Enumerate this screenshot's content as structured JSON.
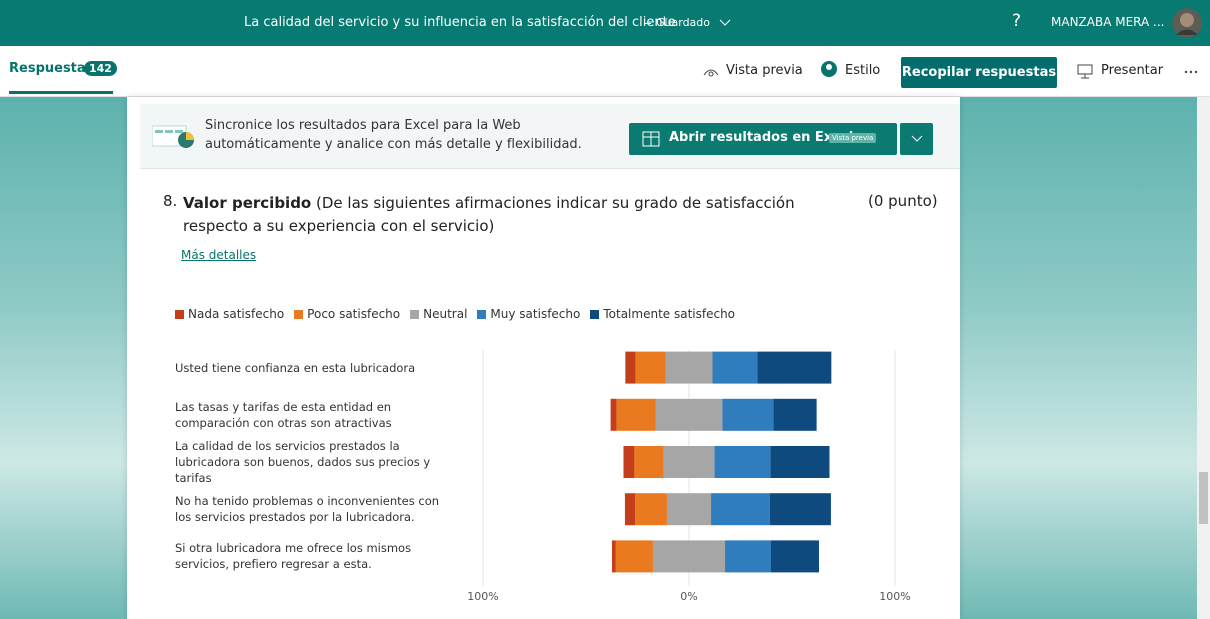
{
  "header": {
    "title": "La calidad del servicio y su influencia en la satisfacción del cliente",
    "status": "Guardado",
    "help": "?",
    "user": "MANZABA MERA ..."
  },
  "toolbar": {
    "tab": "Respuestas",
    "count": 142,
    "preview": "Vista previa",
    "style": "Estilo",
    "collect": "Recopilar respuestas",
    "present": "Presentar"
  },
  "banner": {
    "text": "Sincronice los resultados para Excel para la Web automáticamente y analice con más detalle y flexibilidad.",
    "button": "Abrir resultados en Excel",
    "badge": "Vista previa"
  },
  "question": {
    "number": "8.",
    "title": "Valor percibido",
    "description": "(De  las siguientes afirmaciones indicar su grado de satisfacción respecto a su experiencia con el servicio)",
    "points": "(0 punto)",
    "link": "Más detalles"
  },
  "chart_data": {
    "type": "diverging_bar",
    "categories": [
      "Usted tiene confianza en esta lubricadora",
      "Las tasas y tarifas de esta entidad en comparación con otras son atractivas",
      "La calidad de los servicios prestados la lubricadora son buenos, dados sus precios y tarifas",
      "No ha tenido problemas o inconvenientes con los servicios prestados por la lubricadora.",
      "Si otra lubricadora me ofrece los mismos servicios, prefiero regresar a esta."
    ],
    "series": [
      {
        "name": "Nada satisfecho",
        "color": "#c43e1c",
        "values": [
          4.9,
          2.9,
          5.3,
          4.9,
          1.9
        ]
      },
      {
        "name": "Poco satisfecho",
        "color": "#e97a1f",
        "values": [
          14.6,
          18.9,
          14.1,
          15.5,
          18.0
        ]
      },
      {
        "name": "Neutral",
        "color": "#a6a6a6",
        "values": [
          22.8,
          32.5,
          24.8,
          21.4,
          35.0
        ]
      },
      {
        "name": "Muy satisfecho",
        "color": "#2f7dbd",
        "values": [
          21.8,
          24.8,
          27.2,
          28.6,
          22.3
        ]
      },
      {
        "name": "Totalmente satisfecho",
        "color": "#0f4a7e",
        "values": [
          35.9,
          20.9,
          28.6,
          29.6,
          23.3
        ]
      }
    ],
    "xlim": [
      -100,
      100
    ],
    "xticks": [
      {
        "value": -100,
        "label": "100%"
      },
      {
        "value": 0,
        "label": "0%"
      },
      {
        "value": 100,
        "label": "100%"
      }
    ],
    "grid": true
  }
}
